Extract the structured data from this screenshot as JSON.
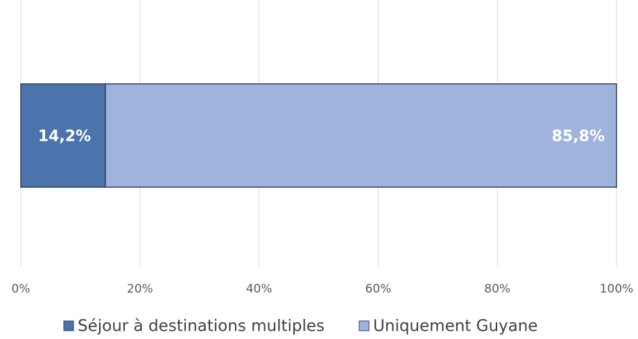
{
  "chart_data": {
    "type": "stacked_barh",
    "categories": [
      null
    ],
    "series": [
      {
        "name": "Séjour à destinations multiples",
        "color": "#4a74ab",
        "values": [
          14.2
        ],
        "value_labels": [
          "14,2%"
        ]
      },
      {
        "name": "Uniquement Guyane",
        "color": "#9fb3dd",
        "values": [
          85.8
        ],
        "value_labels": [
          "85,8%"
        ]
      }
    ],
    "xlim": [
      0,
      100
    ],
    "xticks": [
      {
        "value": 0,
        "label": "0%"
      },
      {
        "value": 20,
        "label": "20%"
      },
      {
        "value": 40,
        "label": "40%"
      },
      {
        "value": 60,
        "label": "60%"
      },
      {
        "value": 80,
        "label": "80%"
      },
      {
        "value": 100,
        "label": "100%"
      }
    ],
    "grid": true
  }
}
